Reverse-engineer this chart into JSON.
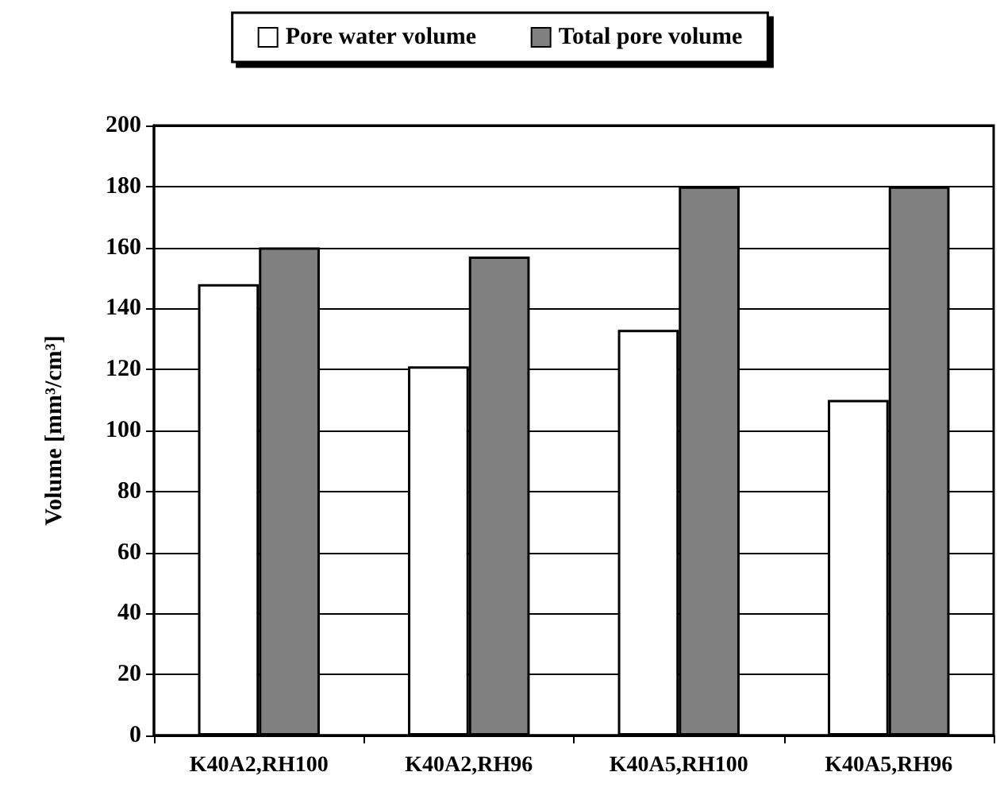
{
  "chart_data": {
    "type": "bar",
    "ylabel": "Volume [mm³/cm³]",
    "categories": [
      "K40A2,RH100",
      "K40A2,RH96",
      "K40A5,RH100",
      "K40A5,RH96"
    ],
    "series": [
      {
        "name": "Pore water volume",
        "color": "#ffffff",
        "values": [
          148,
          121,
          133,
          110
        ]
      },
      {
        "name": "Total pore volume",
        "color": "#808080",
        "values": [
          160,
          157,
          180,
          180
        ]
      }
    ],
    "ylim": [
      0,
      200
    ],
    "yticks": [
      0,
      20,
      40,
      60,
      80,
      100,
      120,
      140,
      160,
      180,
      200
    ],
    "grid": "y",
    "legend": "top"
  }
}
